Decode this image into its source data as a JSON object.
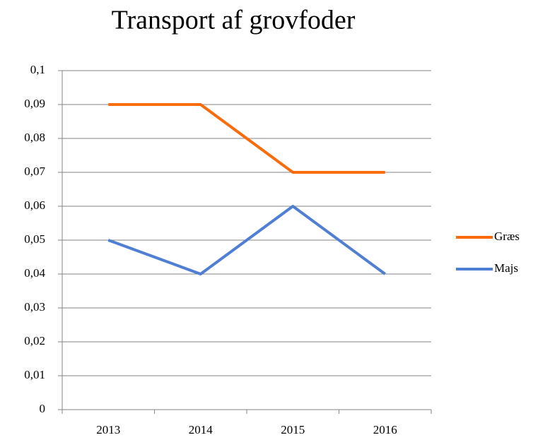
{
  "chart_data": {
    "type": "line",
    "title": "Transport af grovfoder",
    "categories": [
      "2013",
      "2014",
      "2015",
      "2016"
    ],
    "series": [
      {
        "name": "Græs",
        "color": "#fa6b0c",
        "values": [
          0.09,
          0.09,
          0.07,
          0.07
        ]
      },
      {
        "name": "Majs",
        "color": "#4f7fd4",
        "values": [
          0.05,
          0.04,
          0.06,
          0.04
        ]
      }
    ],
    "ylim": [
      0,
      0.1
    ],
    "yticks": [
      0,
      {
        "value": 0.01,
        "label": "0,01"
      },
      {
        "value": 0.02,
        "label": "0,02"
      },
      {
        "value": 0.03,
        "label": "0,03"
      },
      {
        "value": 0.04,
        "label": "0,04"
      },
      {
        "value": 0.05,
        "label": "0,05"
      },
      {
        "value": 0.06,
        "label": "0,06"
      },
      {
        "value": 0.07,
        "label": "0,07"
      },
      {
        "value": 0.08,
        "label": "0,08"
      },
      {
        "value": 0.09,
        "label": "0,09"
      },
      {
        "value": 0.1,
        "label": "0,1"
      }
    ],
    "grid": true,
    "legend": "right"
  }
}
